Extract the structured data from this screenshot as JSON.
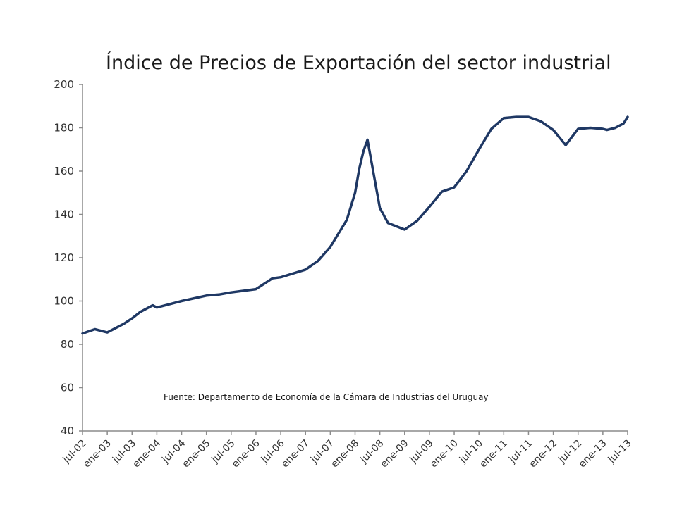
{
  "chart_data": {
    "type": "line",
    "title": "Índice de Precios de Exportación del sector industrial",
    "xlabel": "",
    "ylabel": "",
    "ylim": [
      40,
      200
    ],
    "yticks": [
      40,
      60,
      80,
      100,
      120,
      140,
      160,
      180,
      200
    ],
    "grid": false,
    "legend": "none",
    "line_color": "#1f3864",
    "axis_color": "#8c8c8c",
    "x_tick_labels": [
      "jul-02",
      "ene-03",
      "jul-03",
      "ene-04",
      "jul-04",
      "ene-05",
      "jul-05",
      "ene-06",
      "jul-06",
      "ene-07",
      "jul-07",
      "ene-08",
      "jul-08",
      "ene-09",
      "jul-09",
      "ene-10",
      "jul-10",
      "ene-11",
      "jul-11",
      "ene-12",
      "jul-12",
      "ene-13",
      "jul-13"
    ],
    "series": [
      {
        "name": "Índice de Precios de Exportación",
        "x_months_from_jul02": [
          0,
          3,
          6,
          10,
          12,
          14,
          17,
          18,
          24,
          30,
          33,
          36,
          42,
          46,
          48,
          54,
          57,
          60,
          64,
          66,
          67,
          68,
          69,
          72,
          74,
          78,
          81,
          84,
          87,
          90,
          93,
          96,
          99,
          102,
          105,
          108,
          111,
          114,
          117,
          120,
          123,
          126,
          127,
          129,
          131,
          132
        ],
        "values": [
          85,
          87,
          85.5,
          89.5,
          92,
          95,
          98,
          97,
          100,
          102.5,
          103,
          104,
          105.5,
          110.5,
          111,
          114.5,
          118.5,
          125,
          137.5,
          150,
          161,
          169,
          174.5,
          143,
          136,
          133,
          137,
          143.5,
          150.5,
          152.5,
          160,
          170,
          179.5,
          184.5,
          185,
          185,
          183,
          179,
          172,
          179.5,
          180,
          179.5,
          179,
          180,
          182,
          185
        ]
      }
    ],
    "annotations": [
      "Fuente: Departamento de Economía de la Cámara de Industrias del Uruguay"
    ]
  }
}
